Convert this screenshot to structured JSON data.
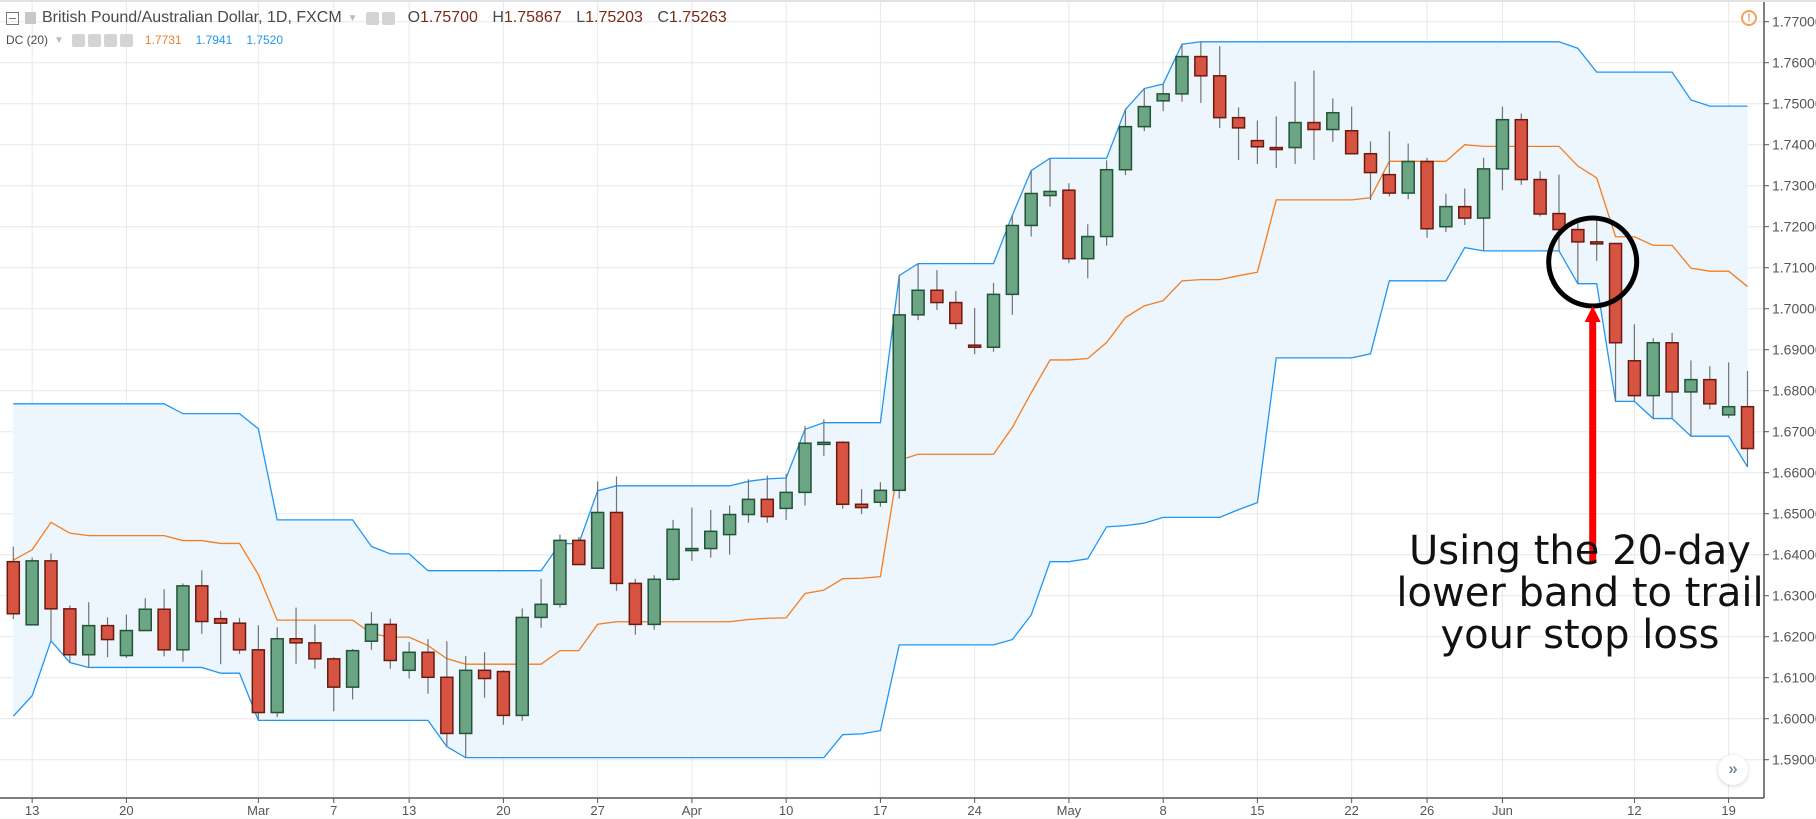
{
  "header": {
    "symbol_title": "British Pound/Australian Dollar, 1D, FXCM",
    "ohlc": {
      "o_label": "O",
      "o": "1.75700",
      "h_label": "H",
      "h": "1.75867",
      "l_label": "L",
      "l": "1.75203",
      "c_label": "C",
      "c": "1.75263"
    },
    "indicator_label": "DC (20)",
    "indicator_values": {
      "middle": "1.7731",
      "upper": "1.7941",
      "lower": "1.7520"
    }
  },
  "annotation": {
    "lines": [
      "Using the 20-day",
      "lower band to trail",
      "your stop loss"
    ]
  },
  "scroll_button": "»",
  "warning_icon": "!",
  "colors": {
    "up": "#6ba583",
    "up_border": "#225437",
    "down": "#d75442",
    "down_border": "#6b1a10",
    "wick": "#737375",
    "dc_band": "#2196f3",
    "dc_mid": "#f57c1f",
    "fill": "#edf6fd",
    "arrow": "#ff0000",
    "circle": "#000000"
  },
  "chart_data": {
    "type": "candlestick",
    "title": "British Pound/Australian Dollar, 1D, FXCM",
    "ylim": [
      1.5815,
      1.7753
    ],
    "y_ticks": [
      "1.59000",
      "1.60000",
      "1.61000",
      "1.62000",
      "1.63000",
      "1.64000",
      "1.65000",
      "1.66000",
      "1.67000",
      "1.68000",
      "1.69000",
      "1.70000",
      "1.71000",
      "1.72000",
      "1.73000",
      "1.74000",
      "1.75000",
      "1.76000",
      "1.77000"
    ],
    "x_ticks": [
      {
        "label": "13",
        "index": 1
      },
      {
        "label": "20",
        "index": 6
      },
      {
        "label": "Mar",
        "index": 13
      },
      {
        "label": "7",
        "index": 17
      },
      {
        "label": "13",
        "index": 21
      },
      {
        "label": "20",
        "index": 26
      },
      {
        "label": "27",
        "index": 31
      },
      {
        "label": "Apr",
        "index": 36
      },
      {
        "label": "10",
        "index": 41
      },
      {
        "label": "17",
        "index": 46
      },
      {
        "label": "24",
        "index": 51
      },
      {
        "label": "May",
        "index": 56
      },
      {
        "label": "8",
        "index": 61
      },
      {
        "label": "15",
        "index": 66
      },
      {
        "label": "22",
        "index": 71
      },
      {
        "label": "26",
        "index": 75
      },
      {
        "label": "Jun",
        "index": 79
      },
      {
        "label": "12",
        "index": 86
      },
      {
        "label": "19",
        "index": 91
      }
    ],
    "grid": true,
    "ohlc_fields": [
      "open",
      "high",
      "low",
      "close"
    ],
    "ohlc": [
      [
        1.6383,
        1.642,
        1.6243,
        1.6256
      ],
      [
        1.6229,
        1.6393,
        1.6229,
        1.6385
      ],
      [
        1.6385,
        1.6403,
        1.619,
        1.6268
      ],
      [
        1.6268,
        1.6276,
        1.6136,
        1.6156
      ],
      [
        1.6156,
        1.6284,
        1.6126,
        1.6227
      ],
      [
        1.6227,
        1.6247,
        1.615,
        1.6193
      ],
      [
        1.6154,
        1.6254,
        1.6148,
        1.6215
      ],
      [
        1.6215,
        1.6294,
        1.6215,
        1.6267
      ],
      [
        1.6267,
        1.6316,
        1.6152,
        1.6168
      ],
      [
        1.6168,
        1.633,
        1.6139,
        1.6324
      ],
      [
        1.6324,
        1.6362,
        1.6207,
        1.6237
      ],
      [
        1.6244,
        1.6263,
        1.6133,
        1.6233
      ],
      [
        1.6233,
        1.6246,
        1.6158,
        1.6168
      ],
      [
        1.6168,
        1.6228,
        1.5998,
        1.6015
      ],
      [
        1.6015,
        1.6223,
        1.6004,
        1.6195
      ],
      [
        1.6195,
        1.6271,
        1.6134,
        1.6185
      ],
      [
        1.6185,
        1.623,
        1.6122,
        1.6146
      ],
      [
        1.6146,
        1.615,
        1.6018,
        1.6077
      ],
      [
        1.6077,
        1.617,
        1.6047,
        1.6166
      ],
      [
        1.6189,
        1.626,
        1.6168,
        1.623
      ],
      [
        1.623,
        1.6244,
        1.6122,
        1.6142
      ],
      [
        1.6118,
        1.6187,
        1.6098,
        1.6162
      ],
      [
        1.6162,
        1.6194,
        1.6061,
        1.6101
      ],
      [
        1.6101,
        1.6189,
        1.5932,
        1.5964
      ],
      [
        1.5964,
        1.6153,
        1.5905,
        1.6118
      ],
      [
        1.6118,
        1.6162,
        1.6051,
        1.6098
      ],
      [
        1.6115,
        1.6118,
        1.5985,
        1.6008
      ],
      [
        1.6008,
        1.6269,
        1.5995,
        1.6247
      ],
      [
        1.6247,
        1.6341,
        1.6222,
        1.6279
      ],
      [
        1.6279,
        1.6449,
        1.6271,
        1.6435
      ],
      [
        1.6435,
        1.6443,
        1.6376,
        1.6376
      ],
      [
        1.6367,
        1.6579,
        1.6367,
        1.6503
      ],
      [
        1.6503,
        1.6591,
        1.6312,
        1.633
      ],
      [
        1.633,
        1.6341,
        1.6205,
        1.623
      ],
      [
        1.623,
        1.635,
        1.6217,
        1.634
      ],
      [
        1.634,
        1.6485,
        1.6336,
        1.6462
      ],
      [
        1.6412,
        1.6515,
        1.6385,
        1.6415
      ],
      [
        1.6415,
        1.6509,
        1.6393,
        1.6457
      ],
      [
        1.6449,
        1.652,
        1.64,
        1.6498
      ],
      [
        1.6498,
        1.6584,
        1.6478,
        1.6535
      ],
      [
        1.6535,
        1.6593,
        1.6478,
        1.6493
      ],
      [
        1.6513,
        1.6597,
        1.6485,
        1.6552
      ],
      [
        1.6552,
        1.6714,
        1.652,
        1.6672
      ],
      [
        1.6672,
        1.673,
        1.6641,
        1.6674
      ],
      [
        1.6674,
        1.6677,
        1.6512,
        1.6523
      ],
      [
        1.6523,
        1.656,
        1.6499,
        1.6515
      ],
      [
        1.6528,
        1.6577,
        1.6517,
        1.6557
      ],
      [
        1.6557,
        1.7081,
        1.6537,
        1.6985
      ],
      [
        1.6985,
        1.711,
        1.6972,
        1.7045
      ],
      [
        1.7045,
        1.7094,
        1.6997,
        1.7015
      ],
      [
        1.7015,
        1.7043,
        1.695,
        1.6964
      ],
      [
        1.6911,
        1.7002,
        1.6889,
        1.6906
      ],
      [
        1.6906,
        1.7063,
        1.6895,
        1.7035
      ],
      [
        1.7035,
        1.7228,
        1.6985,
        1.7203
      ],
      [
        1.7203,
        1.7337,
        1.7176,
        1.7281
      ],
      [
        1.7276,
        1.7367,
        1.7249,
        1.7286
      ],
      [
        1.7289,
        1.7306,
        1.7111,
        1.7122
      ],
      [
        1.7122,
        1.7206,
        1.7074,
        1.7176
      ],
      [
        1.7176,
        1.7362,
        1.7154,
        1.7339
      ],
      [
        1.7339,
        1.7486,
        1.7326,
        1.7444
      ],
      [
        1.7444,
        1.7537,
        1.7433,
        1.7493
      ],
      [
        1.7507,
        1.7548,
        1.7482,
        1.7524
      ],
      [
        1.7524,
        1.7645,
        1.7505,
        1.7615
      ],
      [
        1.7615,
        1.7651,
        1.7502,
        1.7568
      ],
      [
        1.7568,
        1.764,
        1.7441,
        1.7466
      ],
      [
        1.7466,
        1.7491,
        1.7363,
        1.7441
      ],
      [
        1.741,
        1.7459,
        1.7353,
        1.7395
      ],
      [
        1.7393,
        1.7469,
        1.7343,
        1.7389
      ],
      [
        1.7393,
        1.7554,
        1.7353,
        1.7454
      ],
      [
        1.7454,
        1.7581,
        1.7363,
        1.7437
      ],
      [
        1.7437,
        1.7513,
        1.7407,
        1.7478
      ],
      [
        1.7434,
        1.7493,
        1.7378,
        1.7378
      ],
      [
        1.7378,
        1.7408,
        1.7265,
        1.7332
      ],
      [
        1.7327,
        1.7433,
        1.7274,
        1.7282
      ],
      [
        1.7282,
        1.7403,
        1.7267,
        1.7359
      ],
      [
        1.7359,
        1.7368,
        1.7173,
        1.7195
      ],
      [
        1.72,
        1.728,
        1.7187,
        1.7249
      ],
      [
        1.7249,
        1.7293,
        1.7204,
        1.7221
      ],
      [
        1.7221,
        1.7368,
        1.7142,
        1.7341
      ],
      [
        1.7341,
        1.7493,
        1.7289,
        1.7461
      ],
      [
        1.7461,
        1.7476,
        1.7302,
        1.7315
      ],
      [
        1.7315,
        1.7335,
        1.7225,
        1.7231
      ],
      [
        1.7232,
        1.7327,
        1.7141,
        1.7193
      ],
      [
        1.7193,
        1.7208,
        1.7061,
        1.7163
      ],
      [
        1.7163,
        1.7222,
        1.7117,
        1.7159
      ],
      [
        1.7159,
        1.716,
        1.6774,
        1.6917
      ],
      [
        1.6873,
        1.6962,
        1.6774,
        1.6788
      ],
      [
        1.6788,
        1.6928,
        1.6732,
        1.6917
      ],
      [
        1.6917,
        1.6941,
        1.6732,
        1.6797
      ],
      [
        1.6797,
        1.6874,
        1.6689,
        1.6827
      ],
      [
        1.6827,
        1.686,
        1.6755,
        1.6768
      ],
      [
        1.6741,
        1.6869,
        1.6733,
        1.6761
      ],
      [
        1.6761,
        1.6848,
        1.6614,
        1.6659
      ]
    ],
    "dc_upper": [
      1.6768,
      1.6768,
      1.6768,
      1.6768,
      1.6768,
      1.6768,
      1.6768,
      1.6768,
      1.6768,
      1.6744,
      1.6744,
      1.6744,
      1.6744,
      1.6707,
      1.6485,
      1.6485,
      1.6485,
      1.6485,
      1.6485,
      1.642,
      1.6402,
      1.6402,
      1.6361,
      1.6361,
      1.6361,
      1.6361,
      1.6361,
      1.6361,
      1.6361,
      1.6427,
      1.6427,
      1.6556,
      1.6568,
      1.6568,
      1.6568,
      1.6568,
      1.6568,
      1.6568,
      1.6568,
      1.6579,
      1.6585,
      1.6587,
      1.6706,
      1.6722,
      1.6722,
      1.6722,
      1.6722,
      1.7081,
      1.711,
      1.711,
      1.711,
      1.711,
      1.711,
      1.7228,
      1.7337,
      1.7367,
      1.7367,
      1.7367,
      1.7367,
      1.7486,
      1.7537,
      1.7548,
      1.7645,
      1.7651,
      1.7651,
      1.7651,
      1.7651,
      1.7651,
      1.7651,
      1.7651,
      1.7651,
      1.7651,
      1.7651,
      1.7651,
      1.7651,
      1.7651,
      1.7651,
      1.7651,
      1.7651,
      1.7651,
      1.7651,
      1.7651,
      1.7651,
      1.7635,
      1.7577,
      1.7577,
      1.7577,
      1.7577,
      1.7577,
      1.7509,
      1.7494,
      1.7494,
      1.7494
    ],
    "dc_lower": [
      1.6006,
      1.6056,
      1.619,
      1.6137,
      1.6125,
      1.6125,
      1.6125,
      1.6125,
      1.6125,
      1.6125,
      1.6125,
      1.6111,
      1.6111,
      1.5996,
      1.5996,
      1.5996,
      1.5996,
      1.5996,
      1.5996,
      1.5996,
      1.5996,
      1.5996,
      1.5996,
      1.5932,
      1.5905,
      1.5905,
      1.5905,
      1.5905,
      1.5905,
      1.5905,
      1.5905,
      1.5905,
      1.5905,
      1.5905,
      1.5905,
      1.5905,
      1.5905,
      1.5905,
      1.5905,
      1.5905,
      1.5905,
      1.5905,
      1.5905,
      1.5905,
      1.5961,
      1.5963,
      1.5971,
      1.618,
      1.618,
      1.618,
      1.618,
      1.618,
      1.618,
      1.6193,
      1.6253,
      1.6383,
      1.6383,
      1.639,
      1.6468,
      1.6471,
      1.6477,
      1.6491,
      1.6491,
      1.6491,
      1.6491,
      1.651,
      1.6527,
      1.688,
      1.688,
      1.688,
      1.688,
      1.688,
      1.689,
      1.7068,
      1.7068,
      1.7068,
      1.7068,
      1.7149,
      1.7141,
      1.7141,
      1.7141,
      1.7141,
      1.7141,
      1.7061,
      1.7061,
      1.6774,
      1.6774,
      1.6732,
      1.6732,
      1.6689,
      1.6689,
      1.6689,
      1.6614
    ],
    "dc_middle_rule": "average of upper and lower",
    "highlight": {
      "index": 84,
      "note": "circle around lower band touch"
    }
  }
}
